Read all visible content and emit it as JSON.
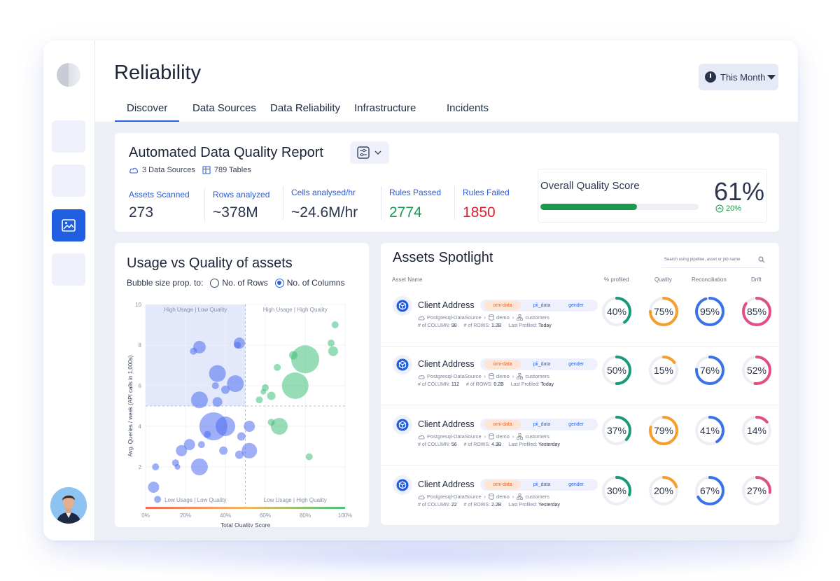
{
  "page": {
    "title": "Reliability",
    "period": "This Month"
  },
  "tabs": [
    "Discover",
    "Data Sources",
    "Data Reliability",
    "Infrastructure",
    "Incidents"
  ],
  "report": {
    "title": "Automated Data Quality Report",
    "sources": "3 Data Sources",
    "tables": "789 Tables",
    "metrics": [
      {
        "label": "Assets Scanned",
        "value": "273",
        "color": "#2b3550"
      },
      {
        "label": "Rows analyzed",
        "value": "~378M",
        "color": "#2b3550"
      },
      {
        "label": "Cells analysed/hr",
        "value": "~24.6M/hr",
        "color": "#2b3550"
      },
      {
        "label": "Rules Passed",
        "value": "2774",
        "color": "#1a9a4e"
      },
      {
        "label": "Rules Failed",
        "value": "1850",
        "color": "#e11d2e"
      }
    ],
    "score": {
      "label": "Overall Quality Score",
      "value": "61%",
      "fill_fraction": 0.61,
      "delta": "20%"
    }
  },
  "usage": {
    "title": "Usage vs Quality of assets",
    "bubble_label": "Bubble size prop. to:",
    "options": [
      "No. of Rows",
      "No. of Columns"
    ],
    "selected_option": "No. of Columns"
  },
  "chart_data": {
    "type": "scatter",
    "xlabel": "Total Quality Score",
    "ylabel": "Avg. Queries / week (API calls in 1,000s)",
    "x_ticks": [
      "0%",
      "20%",
      "40%",
      "60%",
      "80%",
      "100%"
    ],
    "y_ticks": [
      "2",
      "4",
      "6",
      "8",
      "10"
    ],
    "xlim": [
      0,
      100
    ],
    "ylim": [
      0,
      10
    ],
    "quadrants": [
      "High Usage | Low Quality",
      "High Usage | High Quality",
      "Low Usage | Low Quality",
      "Low Usage | High Quality"
    ],
    "series": [
      {
        "color": "#4f6ef0",
        "points": [
          {
            "x": 27,
            "y": 7.9,
            "s": 9
          },
          {
            "x": 24,
            "y": 7.7,
            "s": 5
          },
          {
            "x": 47,
            "y": 8.1,
            "s": 8
          },
          {
            "x": 46,
            "y": 8.0,
            "s": 5
          },
          {
            "x": 36,
            "y": 6.6,
            "s": 12
          },
          {
            "x": 35,
            "y": 6.0,
            "s": 5
          },
          {
            "x": 45,
            "y": 6.1,
            "s": 12
          },
          {
            "x": 40,
            "y": 5.8,
            "s": 6
          },
          {
            "x": 27,
            "y": 5.3,
            "s": 12
          },
          {
            "x": 36,
            "y": 5.2,
            "s": 7
          },
          {
            "x": 34,
            "y": 4.0,
            "s": 20
          },
          {
            "x": 40,
            "y": 4.0,
            "s": 14
          },
          {
            "x": 52,
            "y": 4.0,
            "s": 8
          },
          {
            "x": 48,
            "y": 3.5,
            "s": 6
          },
          {
            "x": 31,
            "y": 3.6,
            "s": 5
          },
          {
            "x": 22,
            "y": 3.1,
            "s": 8
          },
          {
            "x": 28,
            "y": 3.1,
            "s": 5
          },
          {
            "x": 18,
            "y": 2.8,
            "s": 8
          },
          {
            "x": 39,
            "y": 2.8,
            "s": 6
          },
          {
            "x": 52,
            "y": 2.8,
            "s": 11
          },
          {
            "x": 47,
            "y": 2.6,
            "s": 6
          },
          {
            "x": 27,
            "y": 2.0,
            "s": 12
          },
          {
            "x": 15,
            "y": 2.2,
            "s": 5
          },
          {
            "x": 5,
            "y": 2.0,
            "s": 5
          },
          {
            "x": 4,
            "y": 1.0,
            "s": 8
          },
          {
            "x": 6,
            "y": 0.4,
            "s": 5
          },
          {
            "x": 16,
            "y": 2.0,
            "s": 4
          }
        ]
      },
      {
        "color": "#3fbf7a",
        "points": [
          {
            "x": 80,
            "y": 7.3,
            "s": 20
          },
          {
            "x": 74,
            "y": 7.5,
            "s": 6
          },
          {
            "x": 94,
            "y": 7.7,
            "s": 7
          },
          {
            "x": 93,
            "y": 8.1,
            "s": 5
          },
          {
            "x": 95,
            "y": 9.0,
            "s": 5
          },
          {
            "x": 75,
            "y": 6.0,
            "s": 19
          },
          {
            "x": 66,
            "y": 6.9,
            "s": 5
          },
          {
            "x": 60,
            "y": 5.9,
            "s": 5
          },
          {
            "x": 63,
            "y": 5.5,
            "s": 6
          },
          {
            "x": 57,
            "y": 5.3,
            "s": 5
          },
          {
            "x": 67,
            "y": 4.0,
            "s": 12
          },
          {
            "x": 63,
            "y": 4.2,
            "s": 5
          },
          {
            "x": 82,
            "y": 2.5,
            "s": 5
          },
          {
            "x": 59,
            "y": 5.7,
            "s": 4
          }
        ]
      }
    ]
  },
  "spotlight": {
    "title": "Assets Spotlight",
    "search_placeholder": "Search using pipeline, asset or job name",
    "columns": [
      "Asset Name",
      "% profiled",
      "Quality",
      "Reconciliation",
      "Drift"
    ],
    "tags": [
      "omi-data",
      "pii_data",
      "gender"
    ],
    "rows": [
      {
        "name": "Client Address",
        "source": "Postgresql-DataSource",
        "db": "demo",
        "table": "customers",
        "columns_label": "# of COLUMN:",
        "columns": "98",
        "rows_label": "# of ROWS:",
        "rows": "1.2B",
        "profiled_label": "Last Profiled:",
        "profiled": "Today",
        "metrics": [
          {
            "text": "40%",
            "value": 40,
            "color": "#1a9a7a"
          },
          {
            "text": "75%",
            "value": 75,
            "color": "#f59e2b"
          },
          {
            "text": "95%",
            "value": 95,
            "color": "#3b73e6"
          },
          {
            "text": "85%",
            "value": 85,
            "color": "#e24d86"
          }
        ]
      },
      {
        "name": "Client Address",
        "source": "Postgresql-DataSource",
        "db": "demo",
        "table": "customers",
        "columns_label": "# of COLUMN:",
        "columns": "112",
        "rows_label": "# of ROWS:",
        "rows": "0.2B",
        "profiled_label": "Last Profiled:",
        "profiled": "Today",
        "metrics": [
          {
            "text": "50%",
            "value": 50,
            "color": "#1a9a7a"
          },
          {
            "text": "15%",
            "value": 15,
            "color": "#f59e2b"
          },
          {
            "text": "76%",
            "value": 76,
            "color": "#3b73e6"
          },
          {
            "text": "52%",
            "value": 52,
            "color": "#e24d86"
          }
        ]
      },
      {
        "name": "Client Address",
        "source": "Postgresql-DataSource",
        "db": "demo",
        "table": "customers",
        "columns_label": "# of COLUMN:",
        "columns": "56",
        "rows_label": "# of ROWS:",
        "rows": "4.3B",
        "profiled_label": "Last Profiled:",
        "profiled": "Yesterday",
        "metrics": [
          {
            "text": "37%",
            "value": 37,
            "color": "#1a9a7a"
          },
          {
            "text": "79%",
            "value": 79,
            "color": "#f59e2b"
          },
          {
            "text": "41%",
            "value": 41,
            "color": "#3b73e6"
          },
          {
            "text": "14%",
            "value": 14,
            "color": "#e24d86"
          }
        ]
      },
      {
        "name": "Client Address",
        "source": "Postgresql-DataSource",
        "db": "demo",
        "table": "customers",
        "columns_label": "# of COLUMN:",
        "columns": "22",
        "rows_label": "# of ROWS:",
        "rows": "2.2B",
        "profiled_label": "Last Profiled:",
        "profiled": "Yesterday",
        "metrics": [
          {
            "text": "30%",
            "value": 30,
            "color": "#1a9a7a"
          },
          {
            "text": "20%",
            "value": 20,
            "color": "#f59e2b"
          },
          {
            "text": "67%",
            "value": 67,
            "color": "#3b73e6"
          },
          {
            "text": "27%",
            "value": 27,
            "color": "#e24d86"
          }
        ]
      }
    ]
  }
}
